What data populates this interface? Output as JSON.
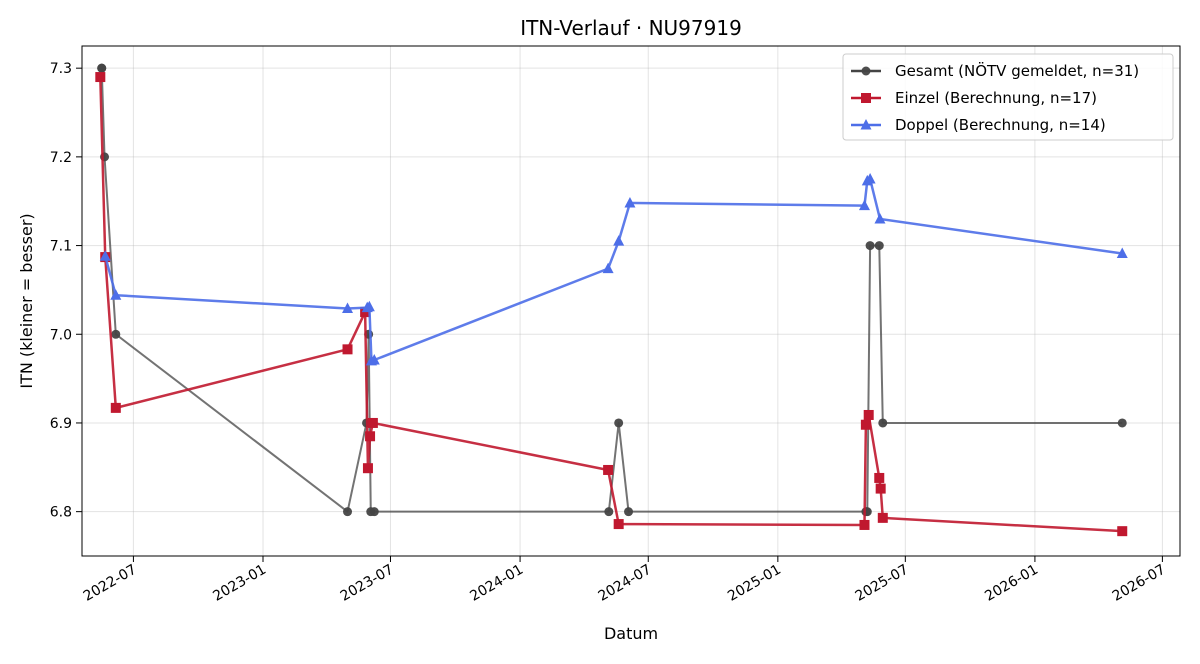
{
  "chart_data": {
    "type": "line",
    "title": "ITN-Verlauf · NU97919",
    "xlabel": "Datum",
    "ylabel": "ITN  (kleiner = besser)",
    "xlim": [
      "2022-04-19",
      "2026-07-26"
    ],
    "ylim": [
      6.75,
      7.325
    ],
    "grid": true,
    "legend_position": "top-right",
    "x_ticks": [
      "2022-07",
      "2023-01",
      "2023-07",
      "2024-01",
      "2024-07",
      "2025-01",
      "2025-07",
      "2026-01",
      "2026-07"
    ],
    "y_ticks": [
      "6.8",
      "6.9",
      "7.0",
      "7.1",
      "7.2",
      "7.3"
    ],
    "series": [
      {
        "name": "Gesamt (NÖTV gemeldet, n=31)",
        "color": "#444444",
        "marker": "circle",
        "x": [
          "2022-05-17",
          "2022-05-17",
          "2022-05-21",
          "2022-06-06",
          "2023-05-01",
          "2023-05-28",
          "2023-05-31",
          "2023-06-03",
          "2023-06-08",
          "2024-05-06",
          "2024-05-20",
          "2024-06-03",
          "2025-05-06",
          "2025-05-08",
          "2025-05-12",
          "2025-05-25",
          "2025-05-30",
          "2026-05-05"
        ],
        "y": [
          7.3,
          7.3,
          7.2,
          7.0,
          6.8,
          6.9,
          7.0,
          6.8,
          6.8,
          6.8,
          6.9,
          6.8,
          6.8,
          6.8,
          7.1,
          7.1,
          6.9,
          6.9
        ]
      },
      {
        "name": "Einzel (Berechnung, n=17)",
        "color": "#c0182f",
        "marker": "square",
        "x": [
          "2022-05-15",
          "2022-05-22",
          "2022-06-06",
          "2023-05-01",
          "2023-05-26",
          "2023-05-30",
          "2023-06-02",
          "2023-06-06",
          "2024-05-05",
          "2024-05-20",
          "2025-05-04",
          "2025-05-06",
          "2025-05-10",
          "2025-05-25",
          "2025-05-27",
          "2025-05-30",
          "2026-05-05"
        ],
        "y": [
          7.29,
          7.087,
          6.917,
          6.983,
          7.025,
          6.849,
          6.885,
          6.9,
          6.847,
          6.786,
          6.785,
          6.898,
          6.909,
          6.838,
          6.826,
          6.793,
          6.778
        ]
      },
      {
        "name": "Doppel (Berechnung, n=14)",
        "color": "#4d6ee8",
        "marker": "triangle",
        "x": [
          "2022-05-22",
          "2022-06-06",
          "2023-05-01",
          "2023-05-29",
          "2023-06-01",
          "2023-06-04",
          "2023-06-08",
          "2024-05-05",
          "2024-05-20",
          "2024-06-05",
          "2025-05-04",
          "2025-05-08",
          "2025-05-12",
          "2025-05-26",
          "2026-05-05"
        ],
        "y": [
          7.088,
          7.044,
          7.029,
          7.03,
          7.031,
          6.97,
          6.971,
          7.074,
          7.105,
          7.148,
          7.145,
          7.173,
          7.175,
          7.13,
          7.091
        ]
      }
    ]
  }
}
